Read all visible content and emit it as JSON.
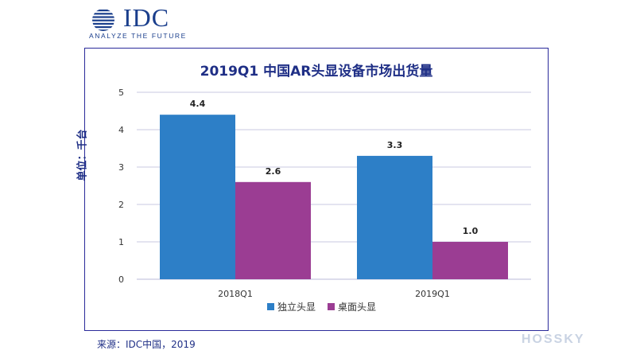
{
  "logo": {
    "brand": "IDC",
    "tagline": "ANALYZE THE FUTURE",
    "color": "#1a3e8c"
  },
  "chart_data": {
    "type": "bar",
    "title": "2019Q1 中国AR头显设备市场出货量",
    "ylabel": "单位：千台",
    "xlabel": "",
    "categories": [
      "2018Q1",
      "2019Q1"
    ],
    "series": [
      {
        "name": "独立头显",
        "values": [
          4.4,
          3.3
        ],
        "labels": [
          "4.4",
          "3.3"
        ],
        "color": "#2d7fc7"
      },
      {
        "name": "桌面头显",
        "values": [
          2.6,
          1.0
        ],
        "labels": [
          "2.6",
          "1.0"
        ],
        "color": "#9b3d93"
      }
    ],
    "ylim": [
      0,
      5
    ],
    "yticks": [
      0,
      1,
      2,
      3,
      4,
      5
    ],
    "grid": true,
    "legend": "bottom"
  },
  "source": "来源：IDC中国，2019",
  "watermark": "HOSSKY"
}
